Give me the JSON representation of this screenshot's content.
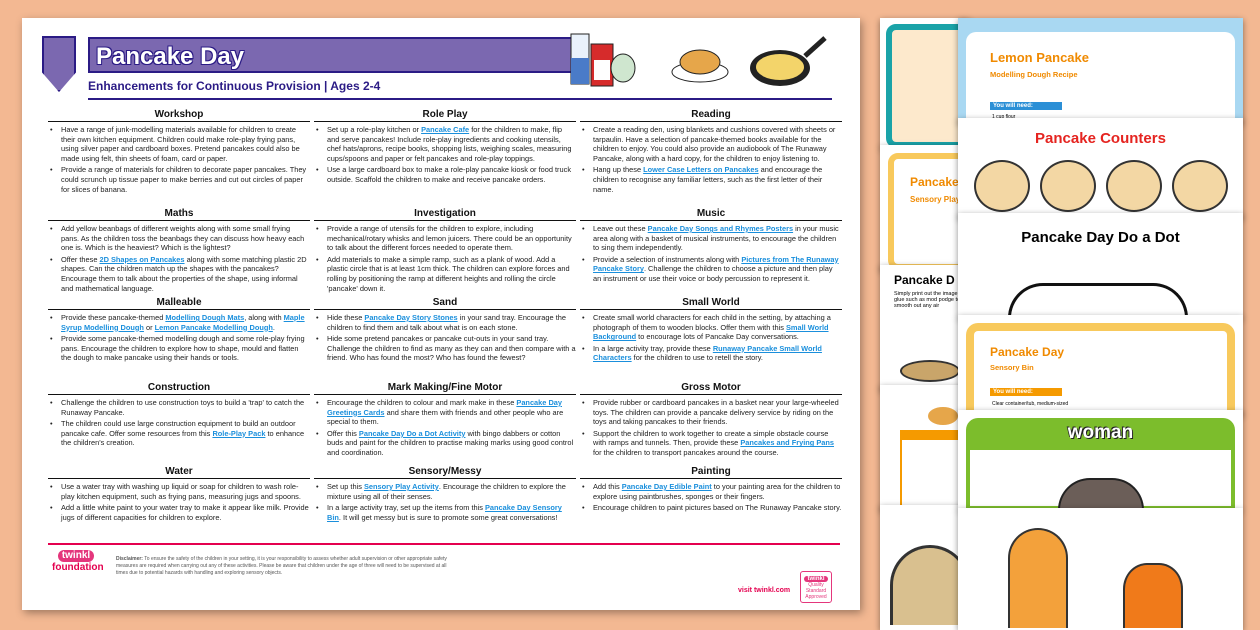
{
  "header": {
    "title": "Pancake Day",
    "subtitle": "Enhancements for Continuous Provision | Ages 2-4"
  },
  "sections": [
    {
      "title": "Workshop",
      "items": [
        [
          {
            "t": "Have a range of junk-modelling materials available for children to create their own kitchen equipment. Children could make role-play frying pans, using silver paper and cardboard boxes. Pretend pancakes could also be made using felt, thin sheets of foam, card or paper."
          }
        ],
        [
          {
            "t": "Provide a range of materials for children to decorate paper pancakes. They could scrunch up tissue paper to make berries and cut out circles of paper for slices of banana."
          }
        ]
      ]
    },
    {
      "title": "Role Play",
      "items": [
        [
          {
            "t": "Set up a role-play kitchen or "
          },
          {
            "t": "Pancake Cafe",
            "l": true
          },
          {
            "t": " for the children to make, flip and serve pancakes! Include role-play ingredients and cooking utensils, chef hats/aprons, recipe books, shopping lists, weighing scales, measuring cups/spoons and paper or felt pancakes and role-play toppings."
          }
        ],
        [
          {
            "t": "Use a large cardboard box to make a role-play pancake kiosk or food truck outside. Scaffold the children to make and receive pancake orders."
          }
        ]
      ]
    },
    {
      "title": "Reading",
      "items": [
        [
          {
            "t": "Create a reading den, using blankets and cushions covered with sheets or tarpaulin. Have a selection of pancake-themed books available for the children to enjoy. You could also provide an audiobook of The Runaway Pancake, along with a hard copy, for the children to enjoy listening to."
          }
        ],
        [
          {
            "t": "Hang up these "
          },
          {
            "t": "Lower Case Letters on Pancakes",
            "l": true
          },
          {
            "t": " and encourage the children to recognise any familiar letters, such as the first letter of their name."
          }
        ]
      ]
    },
    {
      "title": "Maths",
      "items": [
        [
          {
            "t": "Add yellow beanbags of different weights along with some small frying pans. As the children toss the beanbags they can discuss how heavy each one is. Which is the heaviest? Which is the lightest?"
          }
        ],
        [
          {
            "t": "Offer these "
          },
          {
            "t": "2D Shapes on Pancakes",
            "l": true
          },
          {
            "t": " along with some matching plastic 2D shapes. Can the children match up the shapes with the pancakes? Encourage them to talk about the properties of the shape, using informal and mathematical language."
          }
        ]
      ]
    },
    {
      "title": "Investigation",
      "items": [
        [
          {
            "t": "Provide a range of utensils for the children to explore, including mechanical/rotary whisks and lemon juicers. There could be an opportunity to talk about the different forces needed to operate them."
          }
        ],
        [
          {
            "t": "Add materials to make a simple ramp, such as a plank of wood. Add a plastic circle that is at least 1cm thick. The children can explore forces and rolling by positioning the ramp at different heights and rolling the circle 'pancake' down it."
          }
        ]
      ]
    },
    {
      "title": "Music",
      "items": [
        [
          {
            "t": "Leave out these "
          },
          {
            "t": "Pancake Day Songs and Rhymes Posters",
            "l": true
          },
          {
            "t": " in your music area along with a basket of musical instruments, to encourage the children to sing them independently."
          }
        ],
        [
          {
            "t": "Provide a selection of instruments along with "
          },
          {
            "t": "Pictures from The Runaway Pancake Story",
            "l": true
          },
          {
            "t": ". Challenge the children to choose a picture and then play an instrument or use their voice or body percussion to represent it."
          }
        ]
      ]
    },
    {
      "title": "Malleable",
      "items": [
        [
          {
            "t": "Provide these pancake-themed "
          },
          {
            "t": "Modelling Dough Mats",
            "l": true
          },
          {
            "t": ", along with "
          },
          {
            "t": "Maple Syrup Modelling Dough",
            "l": true
          },
          {
            "t": " or "
          },
          {
            "t": "Lemon Pancake Modelling Dough",
            "l": true
          },
          {
            "t": "."
          }
        ],
        [
          {
            "t": "Provide some pancake-themed modelling dough and some role-play frying pans. Encourage the children to explore how to shape, mould and flatten the dough to make pancake using their hands or tools."
          }
        ]
      ]
    },
    {
      "title": "Sand",
      "items": [
        [
          {
            "t": "Hide these "
          },
          {
            "t": "Pancake Day Story Stones",
            "l": true
          },
          {
            "t": " in your sand tray. Encourage the children to find them and talk about what is on each stone."
          }
        ],
        [
          {
            "t": "Hide some pretend pancakes or pancake cut-outs in your sand tray. Challenge the children to find as many as they can and then compare with a friend. Who has found the most? Who has found the fewest?"
          }
        ]
      ]
    },
    {
      "title": "Small World",
      "items": [
        [
          {
            "t": "Create small world characters for each child in the setting, by attaching a photograph of them to wooden blocks. Offer them with this "
          },
          {
            "t": "Small World Background",
            "l": true
          },
          {
            "t": " to encourage lots of Pancake Day conversations."
          }
        ],
        [
          {
            "t": "In a large activity tray, provide these "
          },
          {
            "t": "Runaway Pancake Small World Characters",
            "l": true
          },
          {
            "t": " for the children to use to retell the story."
          }
        ]
      ]
    },
    {
      "title": "Construction",
      "items": [
        [
          {
            "t": "Challenge the children to use construction toys to build a 'trap' to catch the Runaway Pancake."
          }
        ],
        [
          {
            "t": "The children could use large construction equipment to build an outdoor pancake cafe. Offer some resources from this "
          },
          {
            "t": "Role-Play Pack",
            "l": true
          },
          {
            "t": " to enhance the children's creation."
          }
        ]
      ]
    },
    {
      "title": "Mark Making/Fine Motor",
      "items": [
        [
          {
            "t": "Encourage the children to colour and mark make in these "
          },
          {
            "t": "Pancake Day Greetings Cards",
            "l": true
          },
          {
            "t": " and share them with friends and other people who are special to them."
          }
        ],
        [
          {
            "t": "Offer this "
          },
          {
            "t": "Pancake Day Do a Dot Activity",
            "l": true
          },
          {
            "t": " with bingo dabbers or cotton buds and paint for the children to practise making marks using good control and coordination."
          }
        ]
      ]
    },
    {
      "title": "Gross Motor",
      "items": [
        [
          {
            "t": "Provide rubber or cardboard pancakes in a basket near your large-wheeled toys. The children can provide a pancake delivery service by riding on the toys and taking pancakes to their friends."
          }
        ],
        [
          {
            "t": "Support the children to work together to create a simple obstacle course with ramps and tunnels. Then, provide these "
          },
          {
            "t": "Pancakes and Frying Pans",
            "l": true
          },
          {
            "t": " for the children to transport pancakes around the course."
          }
        ]
      ]
    },
    {
      "title": "Water",
      "items": [
        [
          {
            "t": "Use a water tray with washing up liquid or soap for children to wash role-play kitchen equipment, such as frying pans, measuring jugs and spoons."
          }
        ],
        [
          {
            "t": "Add a little white paint to your water tray to make it appear like milk. Provide jugs of different capacities for children to explore."
          }
        ]
      ]
    },
    {
      "title": "Sensory/Messy",
      "items": [
        [
          {
            "t": "Set up this "
          },
          {
            "t": "Sensory Play Activity",
            "l": true
          },
          {
            "t": ". Encourage the children to explore the mixture using all of their senses."
          }
        ],
        [
          {
            "t": "In a large activity tray, set up the items from this "
          },
          {
            "t": "Pancake Day Sensory Bin",
            "l": true
          },
          {
            "t": ". It will get messy but is sure to promote some great conversations!"
          }
        ]
      ]
    },
    {
      "title": "Painting",
      "items": [
        [
          {
            "t": "Add this "
          },
          {
            "t": "Pancake Day Edible Paint",
            "l": true
          },
          {
            "t": " to your painting area for the children to explore using paintbrushes, sponges or their fingers."
          }
        ],
        [
          {
            "t": "Encourage children to paint pictures based on The Runaway Pancake story."
          }
        ]
      ]
    }
  ],
  "footer": {
    "logo": "twinkl foundation",
    "disclaimer_label": "Disclaimer:",
    "disclaimer": " To ensure the safety of the children in your setting, it is your responsibility to assess whether adult supervision or other appropriate safety measures are required when carrying out any of these activities. Please be aware that children under the age of three will need to be supervised at all times due to potential hazards with handling and exploring sensory objects.",
    "visit": "visit twinkl.com",
    "badge_logo": "twinkl",
    "badge_text": "Quality Standard Approved"
  },
  "previews": {
    "lemon_title": "Lemon Pancake",
    "lemon_sub": "Modelling Dough Recipe",
    "you_need": "You will need:",
    "lemon_item": "1 cup flour",
    "counters": "Pancake Counters",
    "dot": "Pancake Day Do a Dot",
    "bin_title": "Pancake Day",
    "bin_sub": "Sensory Bin",
    "bin_item": "Clear container/tub, medium-sized",
    "woman": "woman",
    "sensory_title": "Pancake",
    "sensory_sub": "Sensory Play",
    "paint_title": "Pancake D",
    "paint_text": "Simply print out the image glue such as mod podge to smooth out any air"
  },
  "colors": {
    "purple": "#7b68b0",
    "navy": "#2b1b85",
    "link": "#1a8fdc",
    "pink": "#e4004f",
    "background": "#f3b892"
  }
}
